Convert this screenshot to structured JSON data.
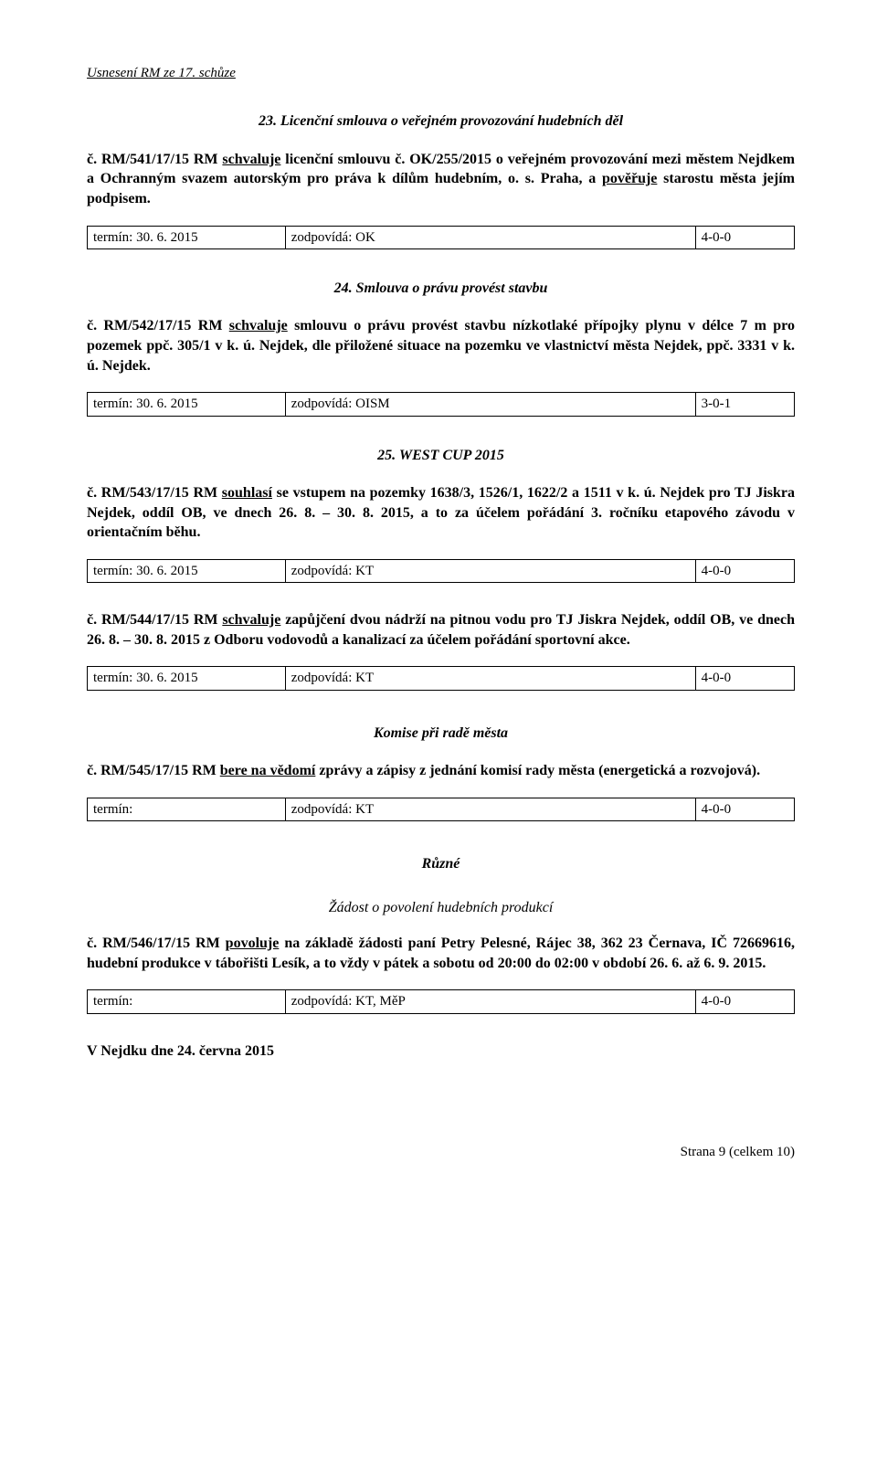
{
  "header": "Usnesení RM ze 17. schůze",
  "sections": [
    {
      "title": "23. Licenční smlouva o veřejném provozování hudebních děl",
      "resolutions": [
        {
          "prefix": "č.  RM/541/17/15  RM  ",
          "verb": "schvaluje",
          "rest": "  licenční  smlouvu  č.  OK/255/2015  o  veřejném provozování  mezi  městem  Nejdkem  a  Ochranným  svazem  autorským  pro  práva  k dílům hudebním, o. s. Praha, a ",
          "tail_underline": "pověřuje",
          "tail_rest": " starostu města jejím podpisem.",
          "term": {
            "c1": "termín: 30. 6. 2015",
            "c2": "zodpovídá: OK",
            "c3": "4-0-0"
          }
        }
      ]
    },
    {
      "title": "24. Smlouva o právu provést stavbu",
      "resolutions": [
        {
          "prefix": "č.  RM/542/17/15  RM  ",
          "verb": "schvaluje",
          "rest": "  smlouvu  o  právu  provést  stavbu  nízkotlaké  přípojky plynu  v délce  7  m  pro  pozemek  ppč.  305/1  v  k.  ú.  Nejdek,  dle  přiložené  situace na pozemku ve vlastnictví města Nejdek, ppč. 3331 v k. ú. Nejdek.",
          "term": {
            "c1": "termín: 30. 6. 2015",
            "c2": "zodpovídá: OISM",
            "c3": "3-0-1"
          }
        }
      ]
    },
    {
      "title": "25. WEST CUP 2015",
      "resolutions": [
        {
          "prefix": "č. RM/543/17/15 RM ",
          "verb": "souhlasí",
          "rest": " se vstupem na pozemky 1638/3, 1526/1, 1622/2 a 1511 v k. ú. Nejdek pro TJ Jiskra Nejdek, oddíl OB, ve dnech 26. 8. – 30. 8. 2015, a to za účelem pořádání 3. ročníku etapového závodu v orientačním běhu.",
          "term": {
            "c1": "termín: 30. 6. 2015",
            "c2": "zodpovídá: KT",
            "c3": "4-0-0"
          }
        },
        {
          "prefix": "č. RM/544/17/15 RM ",
          "verb": "schvaluje",
          "rest": " zapůjčení dvou nádrží na pitnou vodu pro TJ Jiskra Nejdek,  oddíl  OB,  ve  dnech  26.  8.  –  30.  8.  2015  z Odboru  vodovodů  a  kanalizací za účelem pořádání sportovní akce.",
          "term": {
            "c1": "termín: 30. 6. 2015",
            "c2": "zodpovídá: KT",
            "c3": "4-0-0"
          }
        }
      ]
    }
  ],
  "komise": {
    "title": "Komise při radě města",
    "res": {
      "prefix": "č.  RM/545/17/15  RM  ",
      "verb": "bere  na  vědomí",
      "rest": "  zprávy  a  zápisy  z jednání  komisí  rady  města (energetická a rozvojová).",
      "term": {
        "c1": "termín:",
        "c2": "zodpovídá: KT",
        "c3": "4-0-0"
      }
    }
  },
  "ruzne": {
    "title": "Různé",
    "subtitle": "Žádost o povolení hudebních produkcí",
    "res": {
      "prefix": "č. RM/546/17/15 RM ",
      "verb": "povoluje",
      "rest": " na základě žádosti paní Petry Pelesné, Rájec 38, 362 23 Černava, IČ 72669616, hudební produkce v tábořišti Lesík, a to vždy v pátek a sobotu od 20:00 do 02:00 v období 26. 6. až 6. 9. 2015.",
      "term": {
        "c1": "termín:",
        "c2": "zodpovídá: KT, MěP",
        "c3": "4-0-0"
      }
    }
  },
  "signed": "V Nejdku dne 24. června 2015",
  "footer": "Strana 9 (celkem 10)"
}
